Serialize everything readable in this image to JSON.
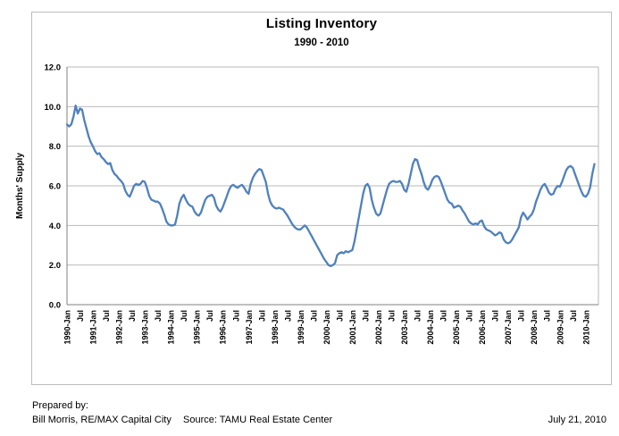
{
  "chart": {
    "title": "Listing Inventory",
    "subtitle": "1990 - 2010",
    "y_axis": {
      "title": "Months' Supply",
      "ticks": [
        "0.0",
        "2.0",
        "4.0",
        "6.0",
        "8.0",
        "10.0",
        "12.0"
      ],
      "min": 0,
      "max": 12
    },
    "x_axis": {
      "labels": [
        "1990-Jan",
        "Jul",
        "1991-Jan",
        "Jul",
        "1992-Jan",
        "Jul",
        "1993-Jan",
        "Jul",
        "1994-Jan",
        "Jul",
        "1995-Jan",
        "Jul",
        "1996-Jan",
        "Jul",
        "1997-Jan",
        "Jul",
        "1998-Jan",
        "Jul",
        "1999-Jan",
        "Jul",
        "2000-Jan",
        "Jul",
        "2001-Jan",
        "Jul",
        "2002-Jan",
        "Jul",
        "2003-Jan",
        "Jul",
        "2004-Jan",
        "Jul",
        "2005-Jan",
        "Jul",
        "2006-Jan",
        "Jul",
        "2007-Jan",
        "Jul",
        "2008-Jan",
        "Jul",
        "2009-Jan",
        "Jul",
        "2010-Jan"
      ],
      "label_interval_months": 6
    }
  },
  "chart_data": {
    "type": "line",
    "title": "Listing Inventory",
    "subtitle": "1990 - 2010",
    "ylabel": "Months' Supply",
    "ylim": [
      0,
      12
    ],
    "grid": true,
    "legend": "none",
    "frequency": "monthly",
    "start_month": "1990-Jan",
    "end_month": "2010-May",
    "line_color": "#4F81BD",
    "values": [
      9.1,
      9.0,
      9.1,
      9.5,
      10.05,
      9.65,
      9.9,
      9.85,
      9.3,
      8.9,
      8.5,
      8.2,
      8.0,
      7.75,
      7.6,
      7.65,
      7.45,
      7.35,
      7.2,
      7.1,
      7.15,
      6.8,
      6.6,
      6.5,
      6.35,
      6.25,
      6.1,
      5.75,
      5.55,
      5.45,
      5.7,
      6.0,
      6.1,
      6.05,
      6.1,
      6.25,
      6.2,
      5.9,
      5.5,
      5.3,
      5.25,
      5.2,
      5.2,
      5.1,
      4.85,
      4.55,
      4.2,
      4.05,
      4.0,
      4.0,
      4.05,
      4.5,
      5.1,
      5.4,
      5.55,
      5.3,
      5.1,
      5.0,
      4.95,
      4.7,
      4.55,
      4.5,
      4.65,
      5.0,
      5.3,
      5.45,
      5.5,
      5.55,
      5.4,
      5.0,
      4.8,
      4.7,
      4.9,
      5.2,
      5.5,
      5.8,
      6.0,
      6.05,
      5.95,
      5.9,
      6.0,
      6.05,
      5.9,
      5.7,
      5.6,
      6.1,
      6.4,
      6.6,
      6.75,
      6.85,
      6.8,
      6.5,
      6.2,
      5.6,
      5.2,
      5.0,
      4.9,
      4.85,
      4.9,
      4.85,
      4.8,
      4.65,
      4.5,
      4.3,
      4.1,
      3.95,
      3.85,
      3.8,
      3.8,
      3.9,
      4.0,
      3.9,
      3.7,
      3.5,
      3.3,
      3.1,
      2.9,
      2.7,
      2.5,
      2.3,
      2.15,
      2.0,
      1.95,
      2.0,
      2.1,
      2.5,
      2.6,
      2.65,
      2.6,
      2.7,
      2.65,
      2.7,
      2.75,
      3.2,
      3.8,
      4.4,
      5.0,
      5.6,
      6.0,
      6.1,
      5.9,
      5.3,
      4.9,
      4.6,
      4.5,
      4.6,
      5.0,
      5.4,
      5.8,
      6.1,
      6.2,
      6.25,
      6.2,
      6.2,
      6.25,
      6.1,
      5.8,
      5.7,
      6.1,
      6.6,
      7.1,
      7.35,
      7.3,
      6.9,
      6.6,
      6.2,
      5.9,
      5.8,
      6.0,
      6.3,
      6.45,
      6.5,
      6.45,
      6.2,
      5.9,
      5.6,
      5.3,
      5.15,
      5.1,
      4.9,
      4.95,
      5.0,
      4.95,
      4.75,
      4.6,
      4.4,
      4.2,
      4.1,
      4.05,
      4.1,
      4.05,
      4.2,
      4.25,
      3.95,
      3.8,
      3.75,
      3.7,
      3.6,
      3.5,
      3.55,
      3.65,
      3.6,
      3.3,
      3.15,
      3.1,
      3.15,
      3.3,
      3.5,
      3.7,
      3.9,
      4.4,
      4.65,
      4.5,
      4.3,
      4.45,
      4.55,
      4.8,
      5.2,
      5.5,
      5.8,
      6.0,
      6.1,
      5.9,
      5.65,
      5.55,
      5.6,
      5.85,
      6.0,
      5.95,
      6.2,
      6.5,
      6.8,
      6.95,
      7.0,
      6.9,
      6.6,
      6.3,
      6.0,
      5.7,
      5.5,
      5.45,
      5.6,
      5.9,
      6.6,
      7.1
    ]
  },
  "footer": {
    "prepared_by_label": "Prepared by:",
    "prepared_by_name": "Bill Morris, RE/MAX Capital City",
    "source": "Source:  TAMU Real Estate Center",
    "date": "July 21, 2010"
  },
  "colors": {
    "line": "#4F81BD",
    "gridline": "#b9b9b9",
    "axis": "#808080",
    "frame_border": "#bdbdbd",
    "text": "#000000"
  }
}
